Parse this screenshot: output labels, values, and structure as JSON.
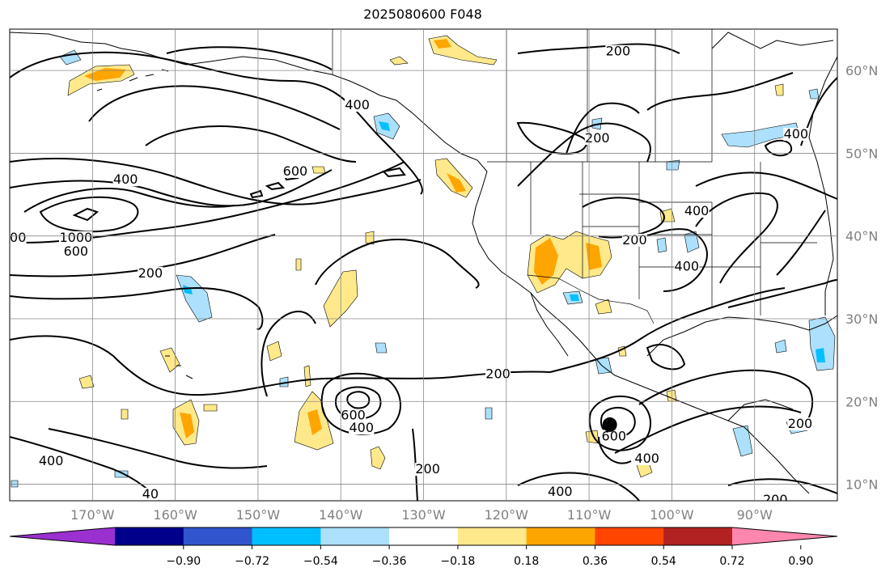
{
  "title": "2025080600 F048",
  "map": {
    "lon_min": -180,
    "lon_max": -80,
    "lat_min": 8,
    "lat_max": 65,
    "gridlines": true,
    "lat_labels": [
      {
        "lat": 60,
        "label": "60°N"
      },
      {
        "lat": 50,
        "label": "50°N"
      },
      {
        "lat": 40,
        "label": "40°N"
      },
      {
        "lat": 30,
        "label": "30°N"
      },
      {
        "lat": 20,
        "label": "20°N"
      },
      {
        "lat": 10,
        "label": "10°N"
      }
    ],
    "lon_labels": [
      {
        "lon": -170,
        "label": "170°W"
      },
      {
        "lon": -160,
        "label": "160°W"
      },
      {
        "lon": -150,
        "label": "150°W"
      },
      {
        "lon": -140,
        "label": "140°W"
      },
      {
        "lon": -130,
        "label": "130°W"
      },
      {
        "lon": -120,
        "label": "120°W"
      },
      {
        "lon": -110,
        "label": "110°W"
      },
      {
        "lon": -100,
        "label": "100°W"
      },
      {
        "lon": -90,
        "label": "90°W"
      }
    ],
    "contour_labels": [
      {
        "lon": -106.5,
        "lat": 62,
        "text": "200"
      },
      {
        "lon": -138,
        "lat": 55.5,
        "text": "400"
      },
      {
        "lon": -109,
        "lat": 51.5,
        "text": "200"
      },
      {
        "lon": -85,
        "lat": 52,
        "text": "400"
      },
      {
        "lon": -145.5,
        "lat": 47.5,
        "text": "600"
      },
      {
        "lon": -166,
        "lat": 46.5,
        "text": "400"
      },
      {
        "lon": -179,
        "lat": 39.5,
        "text": "00"
      },
      {
        "lon": -172,
        "lat": 39.5,
        "text": "1000"
      },
      {
        "lon": -172,
        "lat": 37.8,
        "text": "600"
      },
      {
        "lon": -163,
        "lat": 35.2,
        "text": "200"
      },
      {
        "lon": -104.5,
        "lat": 39.2,
        "text": "200"
      },
      {
        "lon": -97,
        "lat": 42.7,
        "text": "400"
      },
      {
        "lon": -98.2,
        "lat": 36,
        "text": "400"
      },
      {
        "lon": -121,
        "lat": 23,
        "text": "200"
      },
      {
        "lon": -138.5,
        "lat": 18,
        "text": "600"
      },
      {
        "lon": -137.5,
        "lat": 16.5,
        "text": "400"
      },
      {
        "lon": -175,
        "lat": 12.5,
        "text": "400"
      },
      {
        "lon": -163,
        "lat": 8.5,
        "text": "40"
      },
      {
        "lon": -129.5,
        "lat": 11.5,
        "text": "200"
      },
      {
        "lon": -107,
        "lat": 15.5,
        "text": "600"
      },
      {
        "lon": -103,
        "lat": 12.8,
        "text": "400"
      },
      {
        "lon": -113.5,
        "lat": 8.8,
        "text": "400"
      },
      {
        "lon": -84.5,
        "lat": 17,
        "text": "200"
      },
      {
        "lon": -87.5,
        "lat": 7.8,
        "text": "200"
      }
    ],
    "marker": {
      "lon": -107.5,
      "lat": 17.2
    }
  },
  "colorbar": {
    "colors": [
      "#9b30d0",
      "#00008b",
      "#3155cd",
      "#00bfff",
      "#ace0fc",
      "#ffffff",
      "#ffe98b",
      "#ffa500",
      "#ff4500",
      "#b22222",
      "#ff86ae"
    ],
    "ticks": [
      "−0.90",
      "−0.72",
      "−0.54",
      "−0.36",
      "−0.18",
      "0.18",
      "0.36",
      "0.54",
      "0.72",
      "0.90"
    ]
  }
}
